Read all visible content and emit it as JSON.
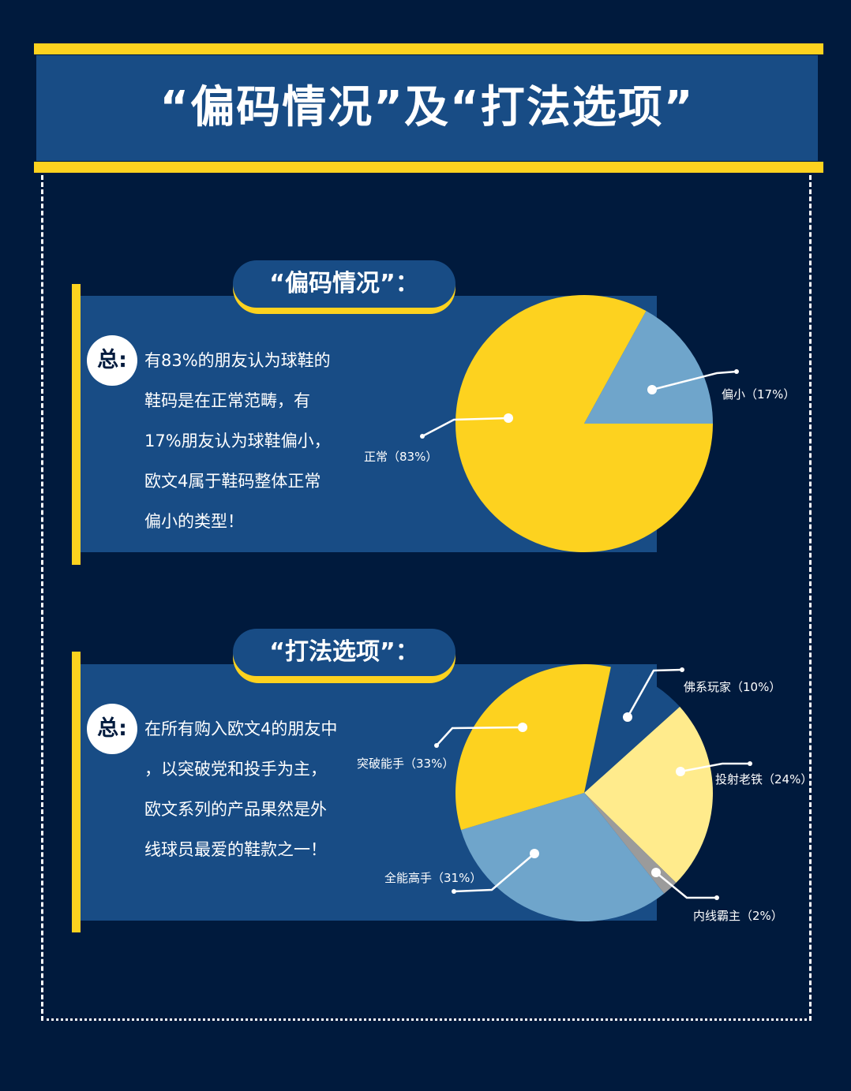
{
  "header": {
    "title": "“偏码情况”及“打法选项”",
    "colors": {
      "background": "#001a3d",
      "panel": "#184c85",
      "accent": "#fdd21f"
    }
  },
  "sections": [
    {
      "pill_title": "“偏码情况”：",
      "badge": "总:",
      "lines": [
        "有83%的朋友认为球鞋的",
        "鞋码是在正常范畴，有",
        "17%朋友认为球鞋偏小，",
        "欧文4属于鞋码整体正常",
        "偏小的类型！"
      ]
    },
    {
      "pill_title": "“打法选项”：",
      "badge": "总:",
      "lines": [
        "在所有购入欧文4的朋友中",
        "，以突破党和投手为主，",
        "欧文系列的产品果然是外",
        "线球员最爱的鞋款之一！"
      ]
    }
  ],
  "chart_data": [
    {
      "type": "pie",
      "title": "偏码情况",
      "categories": [
        "正常",
        "偏小"
      ],
      "values": [
        83,
        17
      ],
      "labels": [
        "正常（83%）",
        "偏小（17%）"
      ],
      "colors": [
        "#fdd21f",
        "#6fa5cb"
      ]
    },
    {
      "type": "pie",
      "title": "打法选项",
      "categories": [
        "佛系玩家",
        "投射老铁",
        "内线霸主",
        "全能高手",
        "突破能手"
      ],
      "values": [
        10,
        24,
        2,
        31,
        33
      ],
      "labels": [
        "佛系玩家（10%）",
        "投射老铁（24%）",
        "内线霸主（2%）",
        "全能高手（31%）",
        "突破能手（33%）"
      ],
      "colors": [
        "#184c85",
        "#ffeb8c",
        "#9b9b9b",
        "#6fa5cb",
        "#fdd21f"
      ]
    }
  ]
}
